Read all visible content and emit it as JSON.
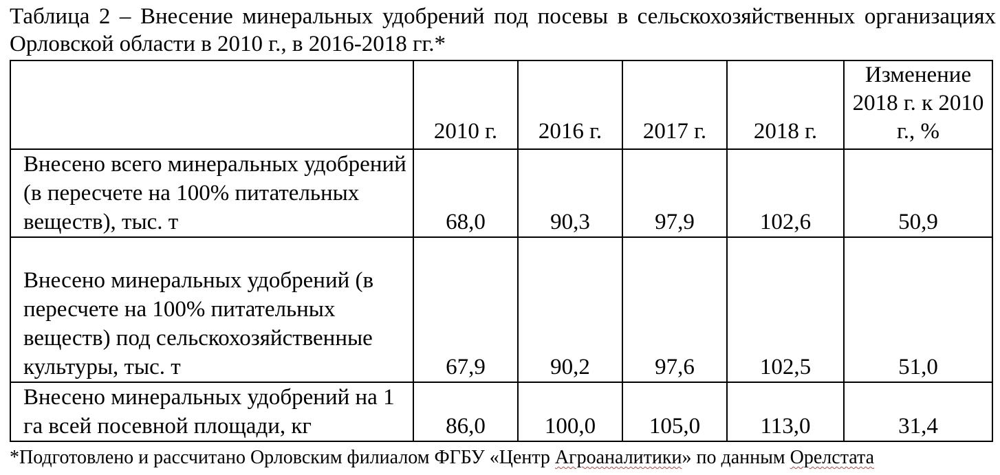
{
  "caption": "Таблица 2 – Внесение минеральных удобрений под посевы в сельскохозяйственных организациях Орловской области в 2010 г., в 2016-2018 гг.*",
  "table": {
    "header": {
      "corner": "",
      "col_2010": "2010 г.",
      "col_2016": "2016 г.",
      "col_2017": "2017 г.",
      "col_2018": "2018 г.",
      "col_change": "Изменение 2018 г. к 2010 г., %"
    },
    "rows": [
      {
        "label": "Внесено всего минеральных удобрений (в пересчете на 100% питательных веществ), тыс. т",
        "v2010": "68,0",
        "v2016": "90,3",
        "v2017": "97,9",
        "v2018": "102,6",
        "change": "50,9"
      },
      {
        "label": "Внесено минеральных удобрений (в пересчете на 100% питательных веществ) под сельскохозяйственные культуры, тыс. т",
        "v2010": "67,9",
        "v2016": "90,2",
        "v2017": "97,6",
        "v2018": "102,5",
        "change": "51,0"
      },
      {
        "label": "Внесено минеральных удобрений на 1 га всей посевной площади, кг",
        "v2010": "86,0",
        "v2016": "100,0",
        "v2017": "105,0",
        "v2018": "113,0",
        "change": "31,4"
      }
    ]
  },
  "footnote": {
    "prefix": "*Подготовлено и рассчитано Орловским филиалом ФГБУ «Центр ",
    "agro": "Агроаналитики",
    "middle": "» по данным ",
    "orel": "Орелстата"
  }
}
